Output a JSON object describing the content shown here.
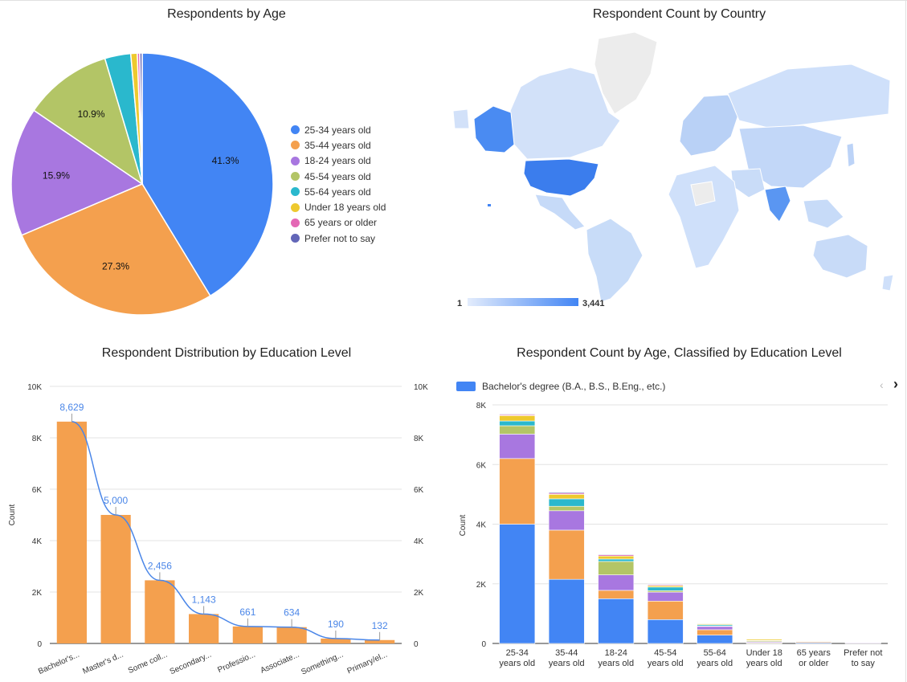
{
  "colors": {
    "blue": "#4285f4",
    "orange": "#f4a04e",
    "purple": "#a877e0",
    "green": "#b3c566",
    "teal": "#2ab8cd",
    "yellow": "#eec92e",
    "pink": "#e468b5",
    "indigo": "#6266b8",
    "line": "#4a86e8",
    "map_low": "#d7e6fb",
    "map_high": "#4285f4",
    "map_none": "#ececec"
  },
  "chart_data": [
    {
      "type": "pie",
      "title": "Respondents by Age",
      "categories": [
        "25-34 years old",
        "35-44 years old",
        "18-24 years old",
        "45-54 years old",
        "55-64 years old",
        "Under 18 years old",
        "65 years or older",
        "Prefer not to say"
      ],
      "values": [
        41.3,
        27.3,
        15.9,
        10.9,
        3.2,
        0.8,
        0.3,
        0.3
      ],
      "slice_labels": [
        "41.3%",
        "27.3%",
        "15.9%",
        "10.9%",
        "",
        "",
        "",
        ""
      ],
      "legend": "right"
    },
    {
      "type": "heatmap",
      "title": "Respondent Count by Country",
      "scale_min": "1",
      "scale_max": "3,441",
      "highlighted": [
        "United States",
        "India",
        "Alaska"
      ]
    },
    {
      "type": "bar",
      "title": "Respondent Distribution by Education Level",
      "categories": [
        "Bachelor's...",
        "Master's d...",
        "Some coll...",
        "Secondary...",
        "Professio...",
        "Associate...",
        "Something...",
        "Primary/el..."
      ],
      "values": [
        8629,
        5000,
        2456,
        1143,
        661,
        634,
        190,
        132
      ],
      "data_labels": [
        "8,629",
        "5,000",
        "2,456",
        "1,143",
        "661",
        "634",
        "190",
        "132"
      ],
      "ylabel": "Count",
      "ylim": [
        0,
        10000
      ],
      "yticks": [
        "0",
        "2K",
        "4K",
        "6K",
        "8K",
        "10K"
      ],
      "line_overlay": true
    },
    {
      "type": "bar",
      "stacked": true,
      "title": "Respondent Count by Age, Classified by Education Level",
      "categories": [
        "25-34 years old",
        "35-44 years old",
        "18-24 years old",
        "45-54 years old",
        "55-64 years old",
        "Under 18 years old",
        "65 years or older",
        "Prefer not to say"
      ],
      "category_lines": [
        [
          "25-34",
          "years old"
        ],
        [
          "35-44",
          "years old"
        ],
        [
          "18-24",
          "years old"
        ],
        [
          "45-54",
          "years old"
        ],
        [
          "55-64",
          "years old"
        ],
        [
          "Under 18",
          "years old"
        ],
        [
          "65 years",
          "or older"
        ],
        [
          "Prefer not",
          "to say"
        ]
      ],
      "legend_visible": "Bachelor's degree (B.A., B.S., B.Eng., etc.)",
      "series": [
        {
          "values": [
            4000,
            2150,
            1500,
            800,
            280,
            10,
            30,
            10
          ]
        },
        {
          "values": [
            2200,
            1650,
            280,
            620,
            180,
            20,
            30,
            5
          ]
        },
        {
          "values": [
            820,
            650,
            520,
            300,
            110,
            30,
            10,
            20
          ]
        },
        {
          "values": [
            280,
            150,
            450,
            50,
            20,
            30,
            5,
            5
          ]
        },
        {
          "values": [
            160,
            250,
            80,
            120,
            40,
            10,
            5,
            5
          ]
        },
        {
          "values": [
            180,
            150,
            100,
            50,
            30,
            40,
            5,
            5
          ]
        },
        {
          "values": [
            30,
            40,
            40,
            30,
            10,
            10,
            5,
            5
          ]
        },
        {
          "values": [
            20,
            30,
            20,
            20,
            10,
            10,
            5,
            5
          ]
        }
      ],
      "ylabel": "Count",
      "ylim": [
        0,
        8000
      ],
      "yticks": [
        "0",
        "2K",
        "4K",
        "6K",
        "8K"
      ]
    }
  ]
}
